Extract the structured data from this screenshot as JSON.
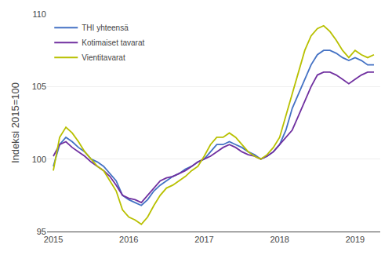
{
  "chart_data": {
    "type": "line",
    "categories": [
      "2015",
      null,
      null,
      null,
      null,
      null,
      null,
      null,
      null,
      null,
      null,
      null,
      "2016",
      null,
      null,
      null,
      null,
      null,
      null,
      null,
      null,
      null,
      null,
      null,
      "2017",
      null,
      null,
      null,
      null,
      null,
      null,
      null,
      null,
      null,
      null,
      null,
      "2018",
      null,
      null,
      null,
      null,
      null,
      null,
      null,
      null,
      null,
      null,
      null,
      "2019",
      null,
      null,
      null
    ],
    "ylabel": "Indeksi 2015=100",
    "ylim": [
      95,
      110
    ],
    "yticks": [
      95,
      100,
      105,
      110
    ],
    "grid": true,
    "legend": "upper left",
    "series": [
      {
        "name": "THI yhteensä",
        "color": "#4472c4",
        "values": [
          99.5,
          101.0,
          101.5,
          101.2,
          100.8,
          100.5,
          100.0,
          99.8,
          99.5,
          99.0,
          98.5,
          97.5,
          97.2,
          97.0,
          96.8,
          97.2,
          97.8,
          98.2,
          98.5,
          98.8,
          99.0,
          99.3,
          99.5,
          99.8,
          100.0,
          100.5,
          101.0,
          101.0,
          101.2,
          101.0,
          100.8,
          100.5,
          100.3,
          100.0,
          100.2,
          100.5,
          101.0,
          102.0,
          103.5,
          104.5,
          105.5,
          106.5,
          107.2,
          107.5,
          107.5,
          107.3,
          107.0,
          106.8,
          107.0,
          106.8,
          106.5,
          106.5
        ]
      },
      {
        "name": "Kotimaiset tavarat",
        "color": "#7030a0",
        "values": [
          100.2,
          101.0,
          101.2,
          100.8,
          100.5,
          100.2,
          99.8,
          99.5,
          99.2,
          98.8,
          98.2,
          97.5,
          97.3,
          97.2,
          97.0,
          97.5,
          98.0,
          98.5,
          98.7,
          98.8,
          99.0,
          99.2,
          99.5,
          99.8,
          100.0,
          100.2,
          100.5,
          100.8,
          101.0,
          100.8,
          100.5,
          100.3,
          100.2,
          100.0,
          100.2,
          100.5,
          101.0,
          101.5,
          102.0,
          103.0,
          104.0,
          105.0,
          105.8,
          106.0,
          106.0,
          105.8,
          105.5,
          105.2,
          105.5,
          105.8,
          106.0,
          106.0
        ]
      },
      {
        "name": "Vientitavarat",
        "color": "#b8c000",
        "values": [
          99.2,
          101.5,
          102.2,
          101.8,
          101.2,
          100.5,
          100.0,
          99.5,
          99.2,
          98.5,
          97.8,
          96.5,
          96.0,
          95.8,
          95.5,
          96.0,
          96.8,
          97.5,
          98.0,
          98.2,
          98.5,
          98.8,
          99.2,
          99.5,
          100.2,
          101.0,
          101.5,
          101.5,
          101.8,
          101.5,
          101.0,
          100.5,
          100.2,
          100.0,
          100.3,
          100.8,
          101.5,
          103.0,
          104.5,
          106.0,
          107.5,
          108.5,
          109.0,
          109.2,
          108.8,
          108.2,
          107.5,
          107.0,
          107.5,
          107.2,
          107.0,
          107.2
        ]
      }
    ]
  }
}
